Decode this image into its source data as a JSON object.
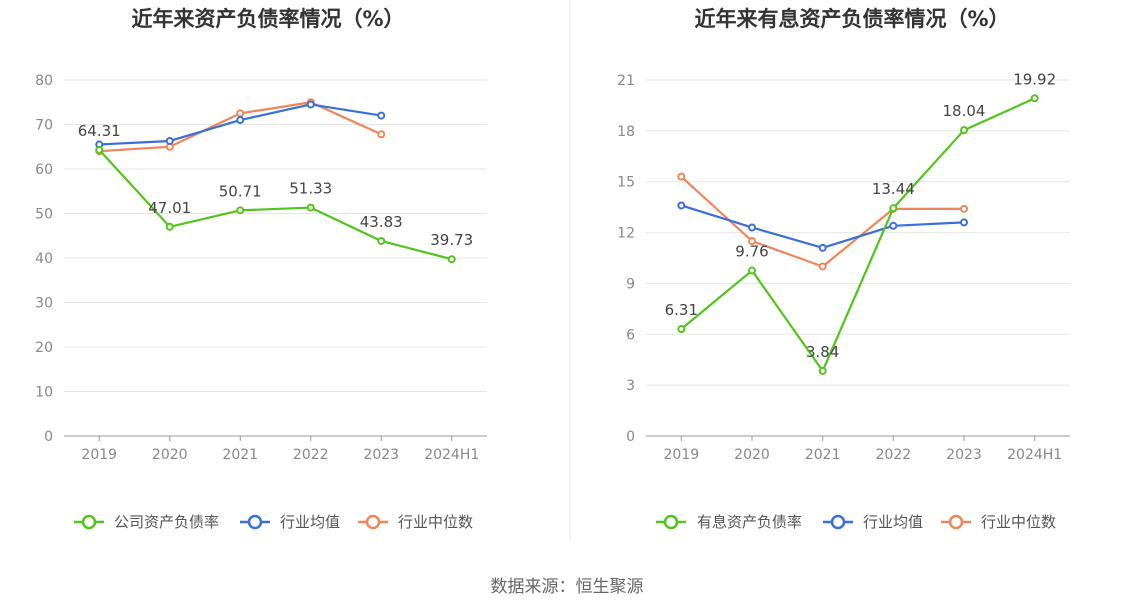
{
  "source_text": "数据来源：恒生聚源",
  "colors": {
    "company": "#52c41a",
    "avg": "#3b6fd8",
    "median": "#f0855c"
  },
  "chart_data": [
    {
      "type": "line",
      "title": "近年来资产负债率情况（%）",
      "categories": [
        "2019",
        "2020",
        "2021",
        "2022",
        "2023",
        "2024H1"
      ],
      "ylim": [
        0,
        80
      ],
      "yticks": [
        0,
        10,
        20,
        30,
        40,
        50,
        60,
        70,
        80
      ],
      "grid": true,
      "legend_position": "bottom",
      "series": [
        {
          "name": "公司资产负债率",
          "role": "company",
          "values": [
            64.31,
            47.01,
            50.71,
            51.33,
            43.83,
            39.73
          ],
          "labels": [
            "64.31",
            "47.01",
            "50.71",
            "51.33",
            "43.83",
            "39.73"
          ]
        },
        {
          "name": "行业均值",
          "role": "avg",
          "values": [
            65.5,
            66.3,
            71.0,
            74.5,
            72.0,
            null
          ]
        },
        {
          "name": "行业中位数",
          "role": "median",
          "values": [
            64.0,
            65.0,
            72.5,
            75.0,
            67.8,
            null
          ]
        }
      ]
    },
    {
      "type": "line",
      "title": "近年来有息资产负债率情况（%）",
      "categories": [
        "2019",
        "2020",
        "2021",
        "2022",
        "2023",
        "2024H1"
      ],
      "ylim": [
        0,
        21
      ],
      "yticks": [
        0,
        3,
        6,
        9,
        12,
        15,
        18,
        21
      ],
      "grid": true,
      "legend_position": "bottom",
      "series": [
        {
          "name": "有息资产负债率",
          "role": "company",
          "values": [
            6.31,
            9.76,
            3.84,
            13.44,
            18.04,
            19.92
          ],
          "labels": [
            "6.31",
            "9.76",
            "3.84",
            "13.44",
            "18.04",
            "19.92"
          ]
        },
        {
          "name": "行业均值",
          "role": "avg",
          "values": [
            13.6,
            12.3,
            11.1,
            12.4,
            12.6,
            null
          ]
        },
        {
          "name": "行业中位数",
          "role": "median",
          "values": [
            15.3,
            11.5,
            10.0,
            13.4,
            13.4,
            null
          ]
        }
      ]
    }
  ]
}
